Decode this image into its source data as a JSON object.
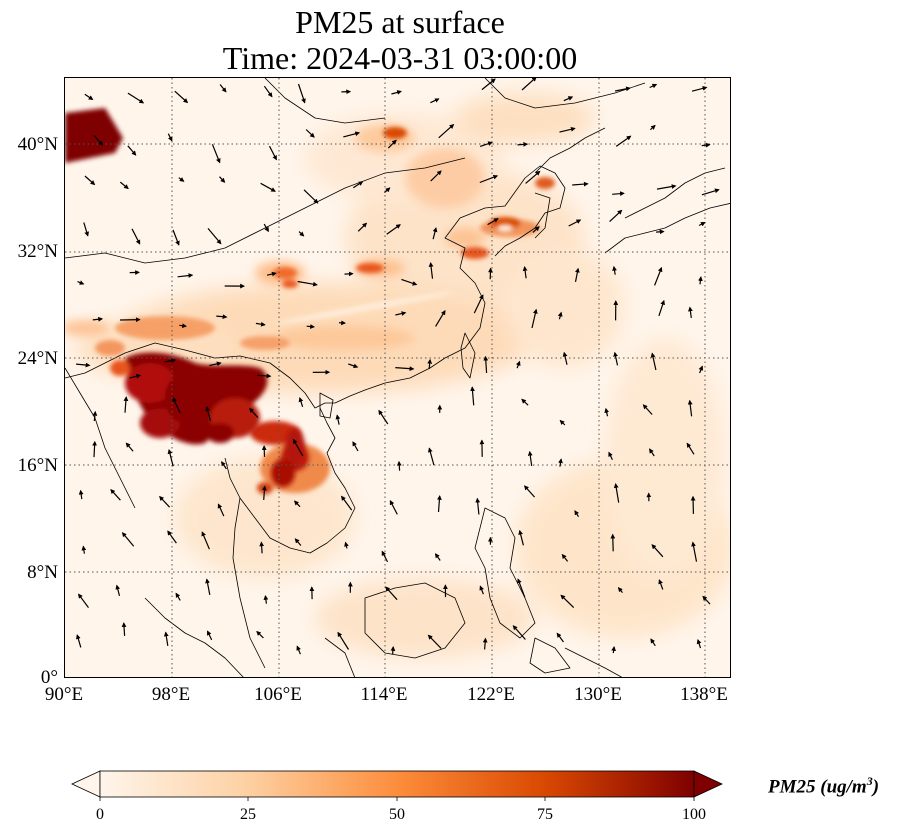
{
  "title": {
    "line1": "PM25 at surface",
    "line2": "Time: 2024-03-31 03:00:00"
  },
  "map": {
    "lat_ticks": [
      "40°N",
      "32°N",
      "24°N",
      "16°N",
      "8°N",
      "0°"
    ],
    "lon_ticks": [
      "90°E",
      "98°E",
      "106°E",
      "114°E",
      "122°E",
      "130°E",
      "138°E"
    ],
    "lat_range": [
      0,
      45
    ],
    "lon_range": [
      90,
      140
    ],
    "gridlines": "dotted",
    "hotspots": [
      {
        "region": "northwest corner",
        "level": "100+"
      },
      {
        "region": "Myanmar / northern Laos / Yunnan",
        "level": "100+"
      },
      {
        "region": "northern Vietnam / Laos",
        "level": "75-100"
      },
      {
        "region": "Yangtze delta",
        "level": "50-75"
      },
      {
        "region": "Shandong / Korea",
        "level": "50-75"
      }
    ],
    "wind_vectors": "shown"
  },
  "colorbar": {
    "ticks": [
      "0",
      "25",
      "50",
      "75",
      "100"
    ],
    "label": "PM25 (ug/m",
    "label_sup": "3",
    "label_close": ")",
    "colors": [
      "#fff5eb",
      "#fdd0a2",
      "#fd8d3c",
      "#d94801",
      "#7f0000"
    ],
    "extend": "both"
  }
}
